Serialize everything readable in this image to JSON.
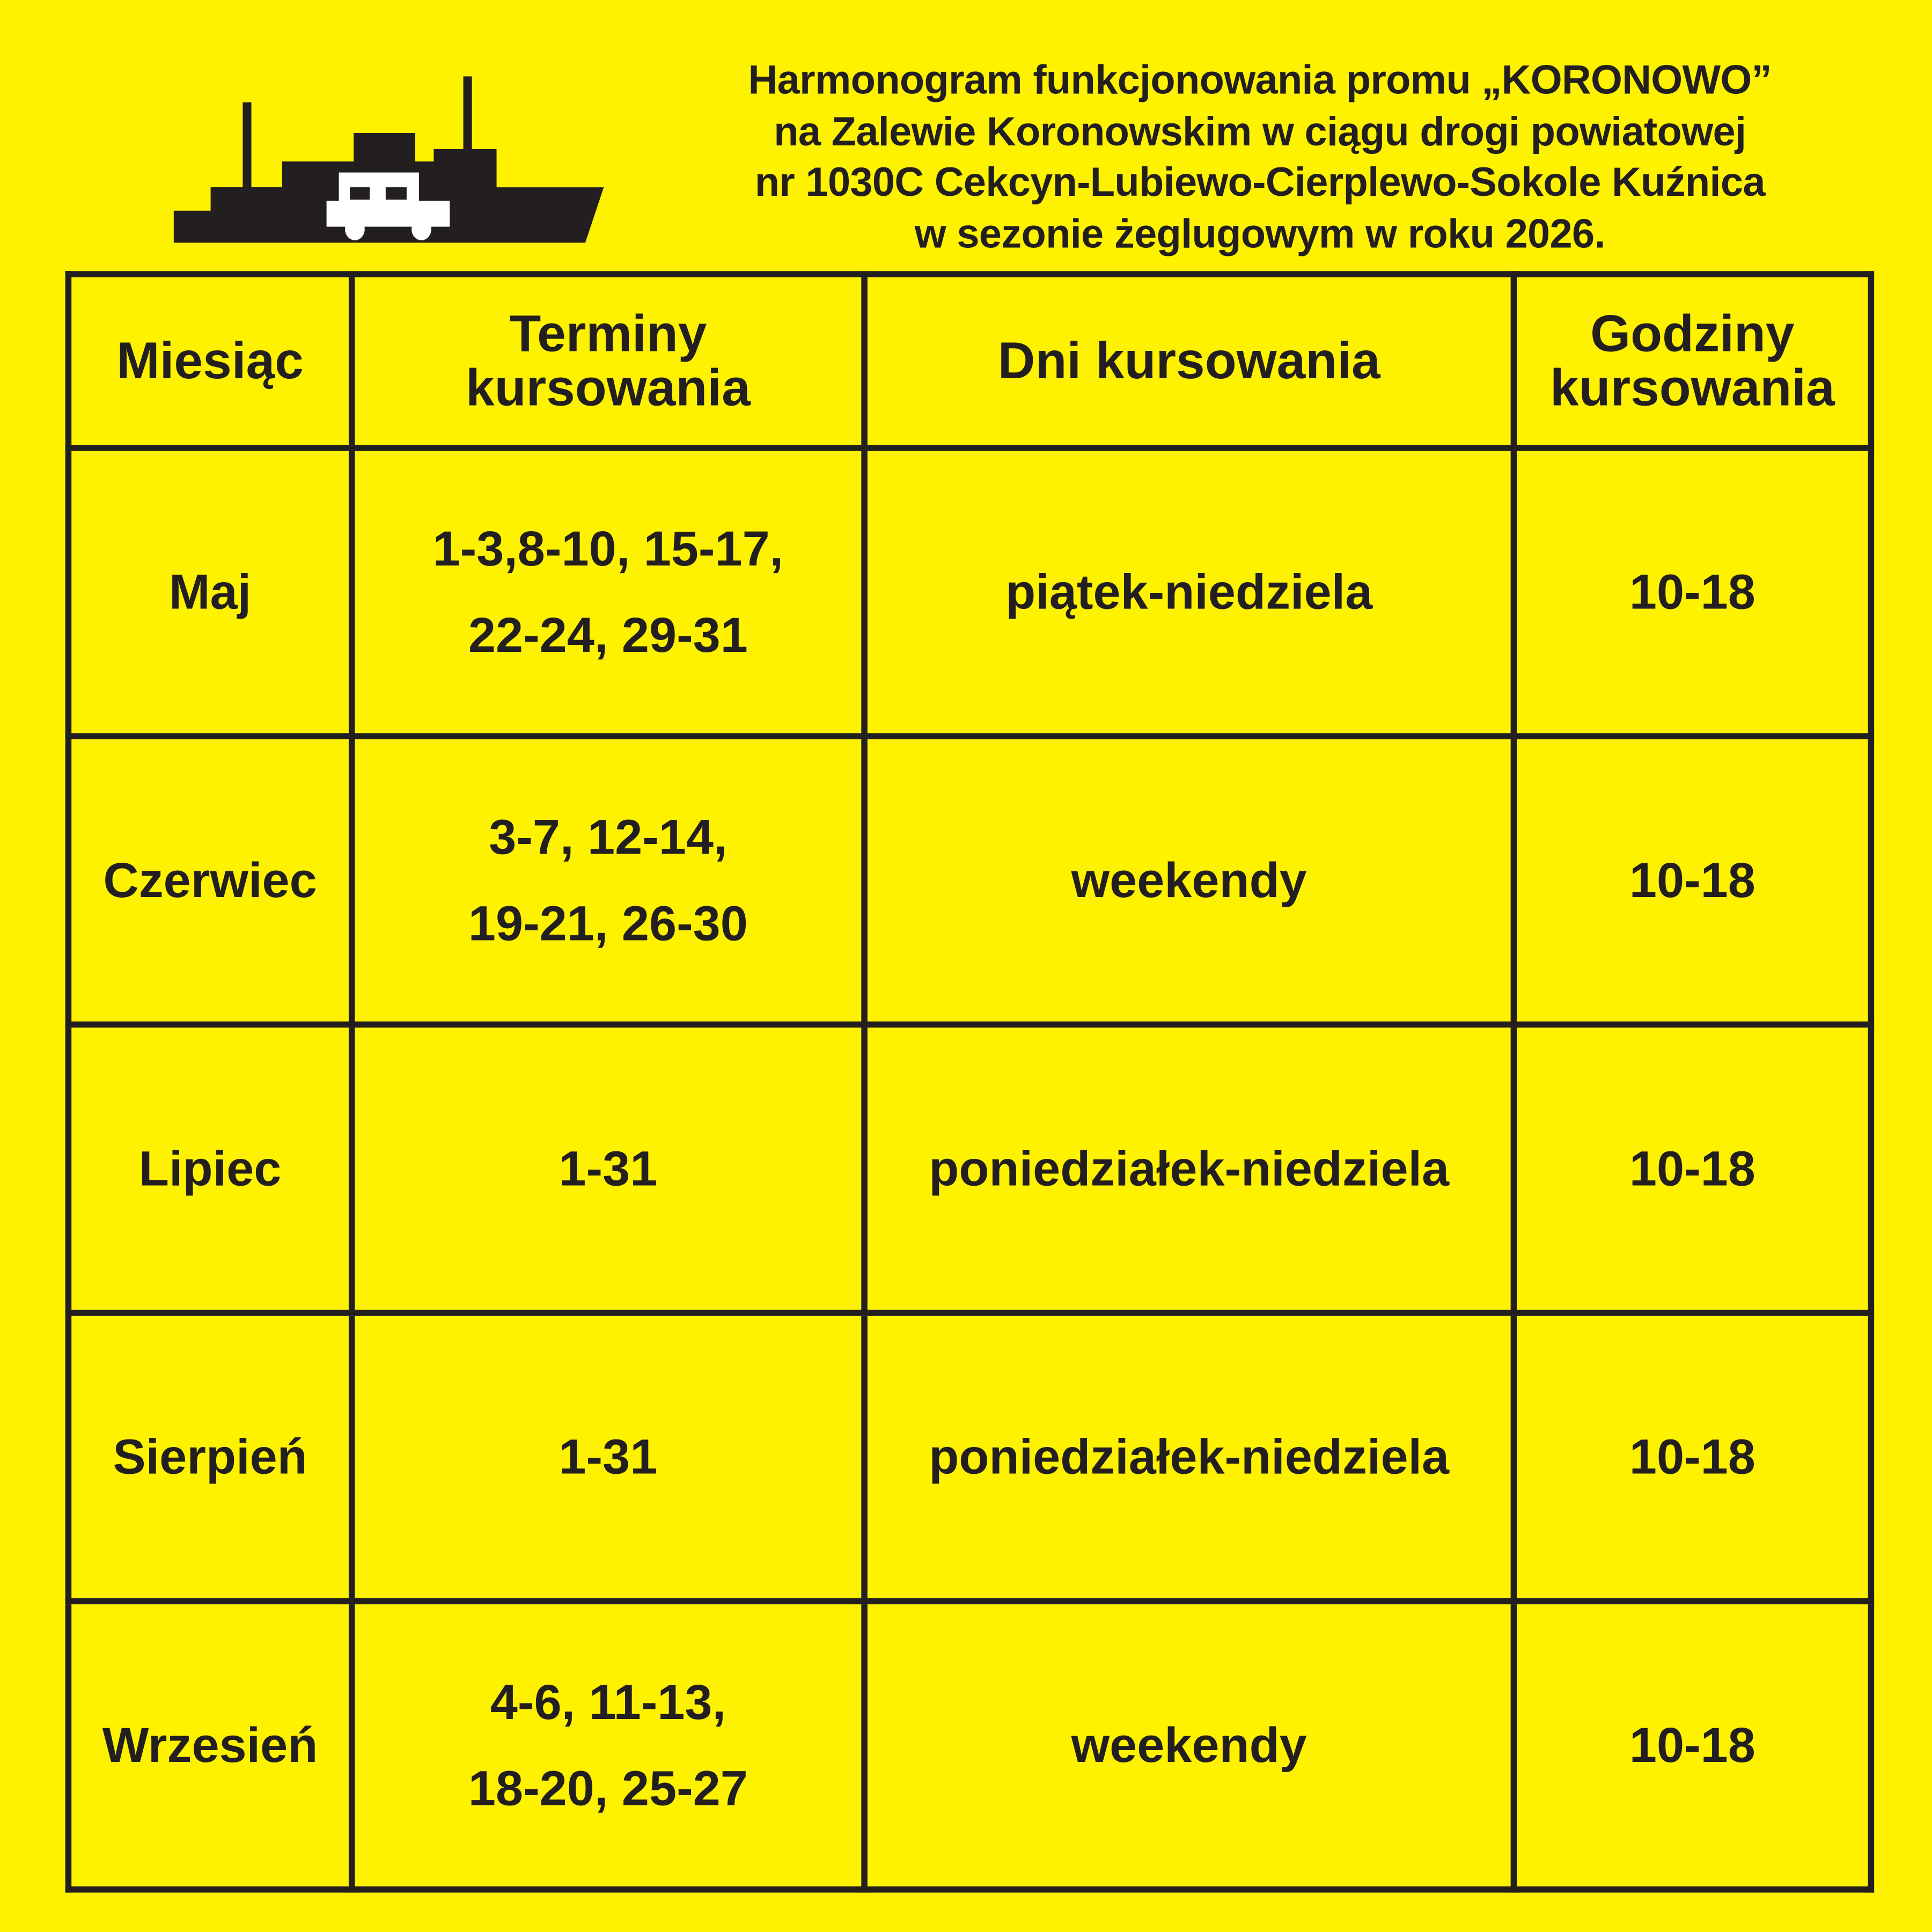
{
  "icons": {
    "ship": "ferry-with-car-icon"
  },
  "colors": {
    "background": "#fff200",
    "ink": "#231f20",
    "car": "#ffffff"
  },
  "title": {
    "lines": [
      "Harmonogram funkcjonowania promu „KORONOWO”",
      "na Zalewie Koronowskim w ciągu drogi powiatowej",
      "nr 1030C Cekcyn-Lubiewo-Cierplewo-Sokole Kuźnica",
      "w sezonie żeglugowym w roku 2026."
    ]
  },
  "table": {
    "headers": [
      {
        "lines": [
          "Miesiąc"
        ]
      },
      {
        "lines": [
          "Terminy",
          "kursowania"
        ]
      },
      {
        "lines": [
          "Dni kursowania"
        ]
      },
      {
        "lines": [
          "Godziny",
          "kursowania"
        ]
      }
    ],
    "rows": [
      {
        "month": "Maj",
        "dates": [
          "1-3,8-10, 15-17,",
          "22-24, 29-31"
        ],
        "days": "piątek-niedziela",
        "hours": "10-18"
      },
      {
        "month": "Czerwiec",
        "dates": [
          "3-7, 12-14,",
          "19-21, 26-30"
        ],
        "days": "weekendy",
        "hours": "10-18"
      },
      {
        "month": "Lipiec",
        "dates": [
          "1-31"
        ],
        "days": "poniedziałek-niedziela",
        "hours": "10-18"
      },
      {
        "month": "Sierpień",
        "dates": [
          "1-31"
        ],
        "days": "poniedziałek-niedziela",
        "hours": "10-18"
      },
      {
        "month": "Wrzesień",
        "dates": [
          "4-6, 11-13,",
          "18-20, 25-27"
        ],
        "days": "weekendy",
        "hours": "10-18"
      }
    ]
  }
}
